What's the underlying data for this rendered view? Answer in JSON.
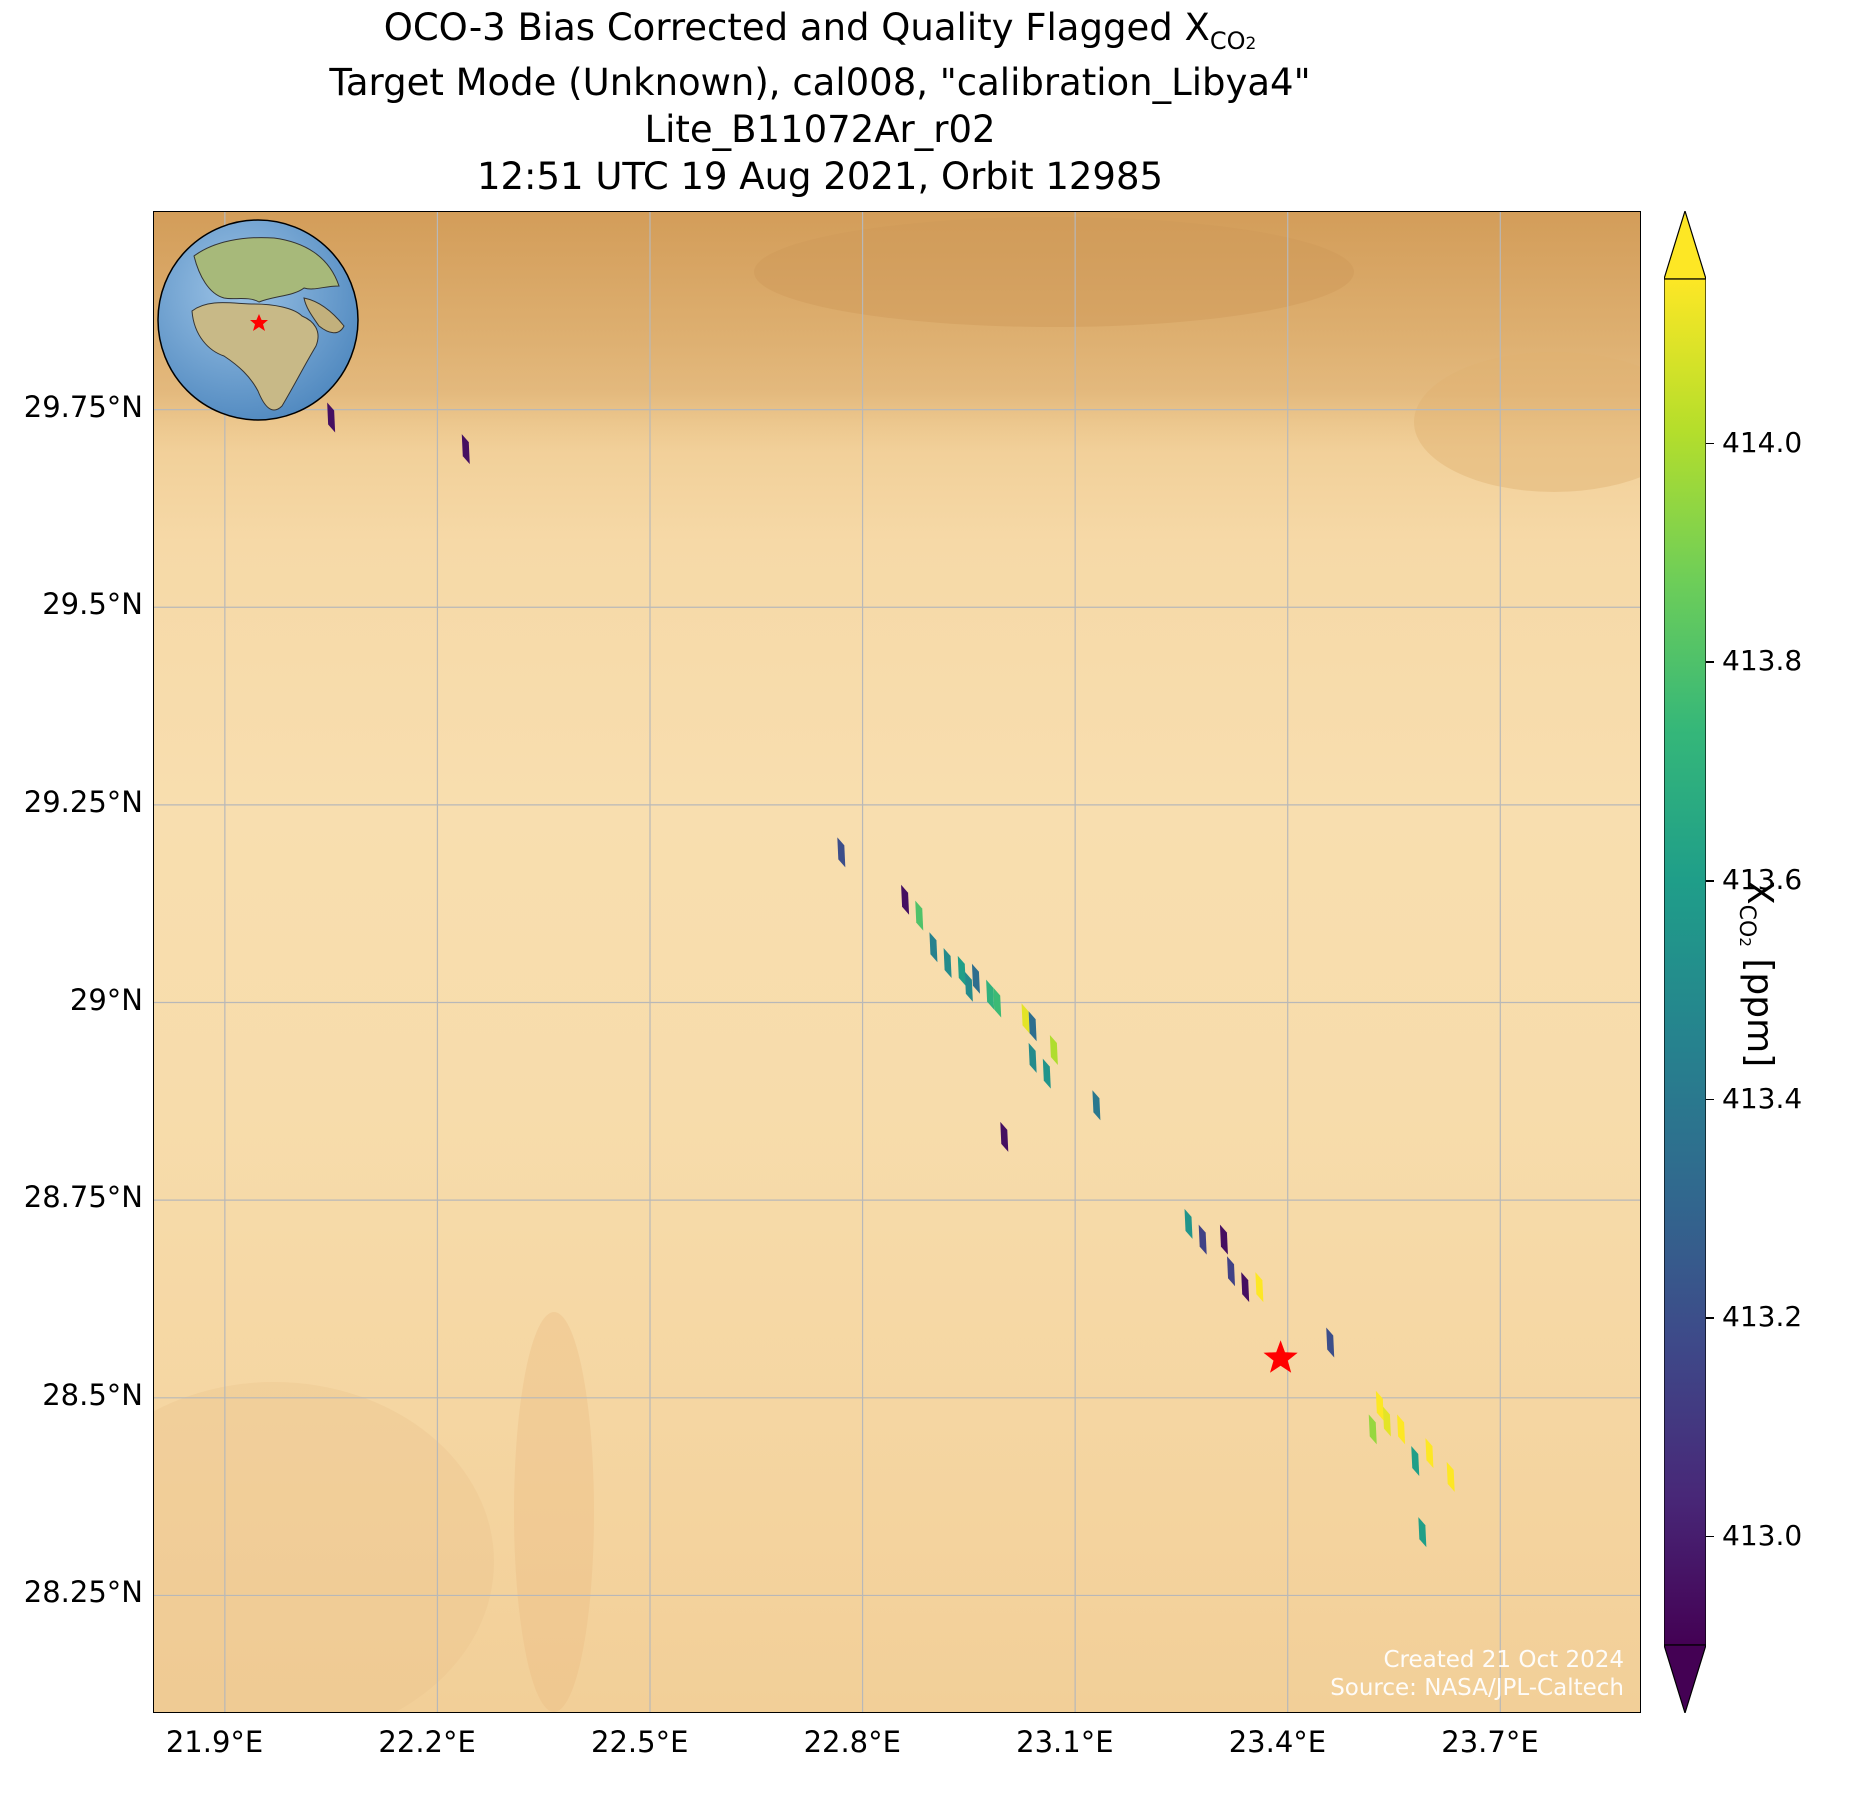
{
  "title": {
    "line1_prefix": "OCO-3 Bias Corrected and Quality Flagged X",
    "line1_sub": "CO",
    "line1_sub2": "2",
    "line2": "Target Mode (Unknown), cal008, \"calibration_Libya4\"",
    "line3": "Lite_B11072Ar_r02",
    "line4": "12:51 UTC 19 Aug 2021, Orbit 12985"
  },
  "watermark": {
    "line1": "Created 21 Oct 2024",
    "line2": "Source: NASA/JPL-Caltech"
  },
  "axes": {
    "x_ticks": [
      "21.9°E",
      "22.2°E",
      "22.5°E",
      "22.8°E",
      "23.1°E",
      "23.4°E",
      "23.7°E"
    ],
    "x_tick_values": [
      21.9,
      22.2,
      22.5,
      22.8,
      23.1,
      23.4,
      23.7
    ],
    "y_ticks": [
      "29.75°N",
      "29.5°N",
      "29.25°N",
      "29°N",
      "28.75°N",
      "28.5°N",
      "28.25°N"
    ],
    "y_tick_values": [
      29.75,
      29.5,
      29.25,
      29.0,
      28.75,
      28.5,
      28.25
    ],
    "lon_range": [
      21.8,
      23.9
    ],
    "lat_range": [
      28.1,
      30.0
    ],
    "grid": true
  },
  "colorbar": {
    "label_prefix": "X",
    "label_sub": "CO",
    "label_sub2": "2",
    "label_suffix": " [ppm]",
    "ticks": [
      "413.0",
      "413.2",
      "413.4",
      "413.6",
      "413.8",
      "414.0"
    ],
    "tick_values": [
      413.0,
      413.2,
      413.4,
      413.6,
      413.8,
      414.0
    ],
    "vmin": 412.9,
    "vmax": 414.15,
    "colormap": "viridis",
    "extend": "both"
  },
  "chart_data": {
    "type": "scatter",
    "title": "OCO-3 Bias Corrected and Quality Flagged XCO2",
    "xlabel": "",
    "ylabel": "",
    "target": {
      "lon": 23.39,
      "lat": 28.55,
      "color": "#ff0000",
      "marker": "star"
    },
    "points": [
      {
        "lon": 22.05,
        "lat": 29.74,
        "xco2": 412.95
      },
      {
        "lon": 22.24,
        "lat": 29.7,
        "xco2": 412.95
      },
      {
        "lon": 22.77,
        "lat": 29.19,
        "xco2": 413.2
      },
      {
        "lon": 22.86,
        "lat": 29.13,
        "xco2": 412.95
      },
      {
        "lon": 22.88,
        "lat": 29.11,
        "xco2": 413.8
      },
      {
        "lon": 22.9,
        "lat": 29.07,
        "xco2": 413.45
      },
      {
        "lon": 22.92,
        "lat": 29.05,
        "xco2": 413.5
      },
      {
        "lon": 22.94,
        "lat": 29.04,
        "xco2": 413.6
      },
      {
        "lon": 22.95,
        "lat": 29.02,
        "xco2": 413.5
      },
      {
        "lon": 22.96,
        "lat": 29.03,
        "xco2": 413.35
      },
      {
        "lon": 22.98,
        "lat": 29.01,
        "xco2": 413.7
      },
      {
        "lon": 22.99,
        "lat": 29.0,
        "xco2": 413.75
      },
      {
        "lon": 23.03,
        "lat": 28.98,
        "xco2": 414.1
      },
      {
        "lon": 23.04,
        "lat": 28.97,
        "xco2": 413.35
      },
      {
        "lon": 23.04,
        "lat": 28.93,
        "xco2": 413.5
      },
      {
        "lon": 23.06,
        "lat": 28.91,
        "xco2": 413.55
      },
      {
        "lon": 23.07,
        "lat": 28.94,
        "xco2": 414.0
      },
      {
        "lon": 23.13,
        "lat": 28.87,
        "xco2": 413.4
      },
      {
        "lon": 23.0,
        "lat": 28.83,
        "xco2": 412.95
      },
      {
        "lon": 23.26,
        "lat": 28.72,
        "xco2": 413.55
      },
      {
        "lon": 23.28,
        "lat": 28.7,
        "xco2": 413.15
      },
      {
        "lon": 23.31,
        "lat": 28.7,
        "xco2": 412.95
      },
      {
        "lon": 23.32,
        "lat": 28.66,
        "xco2": 413.15
      },
      {
        "lon": 23.34,
        "lat": 28.64,
        "xco2": 412.95
      },
      {
        "lon": 23.36,
        "lat": 28.64,
        "xco2": 414.15
      },
      {
        "lon": 23.46,
        "lat": 28.57,
        "xco2": 413.2
      },
      {
        "lon": 23.53,
        "lat": 28.49,
        "xco2": 414.15
      },
      {
        "lon": 23.54,
        "lat": 28.47,
        "xco2": 414.1
      },
      {
        "lon": 23.52,
        "lat": 28.46,
        "xco2": 413.95
      },
      {
        "lon": 23.56,
        "lat": 28.46,
        "xco2": 414.15
      },
      {
        "lon": 23.58,
        "lat": 28.42,
        "xco2": 413.6
      },
      {
        "lon": 23.6,
        "lat": 28.43,
        "xco2": 414.15
      },
      {
        "lon": 23.63,
        "lat": 28.4,
        "xco2": 414.15
      },
      {
        "lon": 23.59,
        "lat": 28.33,
        "xco2": 413.6
      }
    ]
  }
}
